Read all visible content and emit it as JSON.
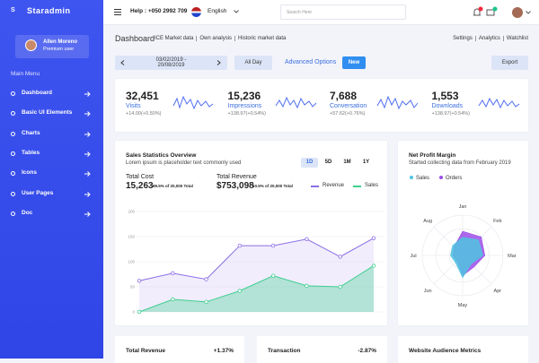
{
  "brand": "Staradmin",
  "profile": {
    "name": "Allen Moreno",
    "role": "Premium user"
  },
  "menu": {
    "title": "Main Menu",
    "items": [
      "Dashboard",
      "Basic UI Elements",
      "Charts",
      "Tables",
      "Icons",
      "User Pages",
      "Doc"
    ]
  },
  "header": {
    "help": "Help : +050 2992 709",
    "language": "English",
    "search": "Search Here"
  },
  "page": {
    "title": "Dashboard",
    "links": [
      "ICE Market data",
      "Own analysis",
      "Historic market data"
    ],
    "right_links": [
      "Settings",
      "Analytics",
      "Watchlist"
    ]
  },
  "toolbar": {
    "date_range": "03/02/2019 - 20/08/2019",
    "period": "All Day",
    "advanced": "Advanced Options",
    "new": "New",
    "export": "Export"
  },
  "stats": [
    {
      "value": "32,451",
      "label": "Visits",
      "change": "+14.00(+0.50%)"
    },
    {
      "value": "15,236",
      "label": "Impressions",
      "change": "+138.97(+0.54%)"
    },
    {
      "value": "7,688",
      "label": "Conversation",
      "change": "+57.62(+0.76%)"
    },
    {
      "value": "1,553",
      "label": "Downloads",
      "change": "+138.97(+0.54%)"
    }
  ],
  "sales": {
    "title": "Sales Statistics Overview",
    "subtitle": "Lorem ipsum is placeholder text commonly used",
    "ranges": [
      "1D",
      "5D",
      "1M",
      "1Y"
    ],
    "totals": [
      {
        "label": "Total Cost",
        "value": "15,263",
        "note": "89.5% of 20,000 Total"
      },
      {
        "label": "Total Revenue",
        "value": "$753,098",
        "note": "10.5% of 20,000 Total"
      }
    ],
    "chart": {
      "type": "area",
      "ylim": [
        0,
        200
      ],
      "yticks": [
        0,
        50,
        100,
        150,
        200
      ],
      "series": [
        {
          "name": "Revenue",
          "color": "#8c6ee6",
          "values": [
            62,
            77,
            65,
            132,
            132,
            145,
            110,
            147
          ]
        },
        {
          "name": "Sales",
          "color": "#3ecf8e",
          "values": [
            0,
            25,
            20,
            42,
            72,
            52,
            50,
            92
          ]
        }
      ]
    }
  },
  "profit": {
    "title": "Net Profit Margin",
    "subtitle": "Started collecting data from February 2019",
    "chart": {
      "type": "radar",
      "categories": [
        "Jan",
        "Feb",
        "Mar",
        "Apr",
        "May",
        "Jun",
        "Jul",
        "Aug"
      ],
      "rlim": [
        0,
        100
      ],
      "series": [
        {
          "name": "Sales",
          "color": "#4fc3e0",
          "values": [
            45,
            55,
            50,
            30,
            55,
            25,
            30,
            35
          ]
        },
        {
          "name": "Orders",
          "color": "#9c4ee8",
          "values": [
            60,
            65,
            55,
            40,
            50,
            20,
            25,
            30
          ]
        }
      ]
    }
  },
  "bottom": [
    {
      "title": "Total Revenue",
      "change": "+1.37%"
    },
    {
      "title": "Transaction",
      "change": "-2.87%"
    },
    {
      "title": "Website Audience Metrics"
    }
  ]
}
